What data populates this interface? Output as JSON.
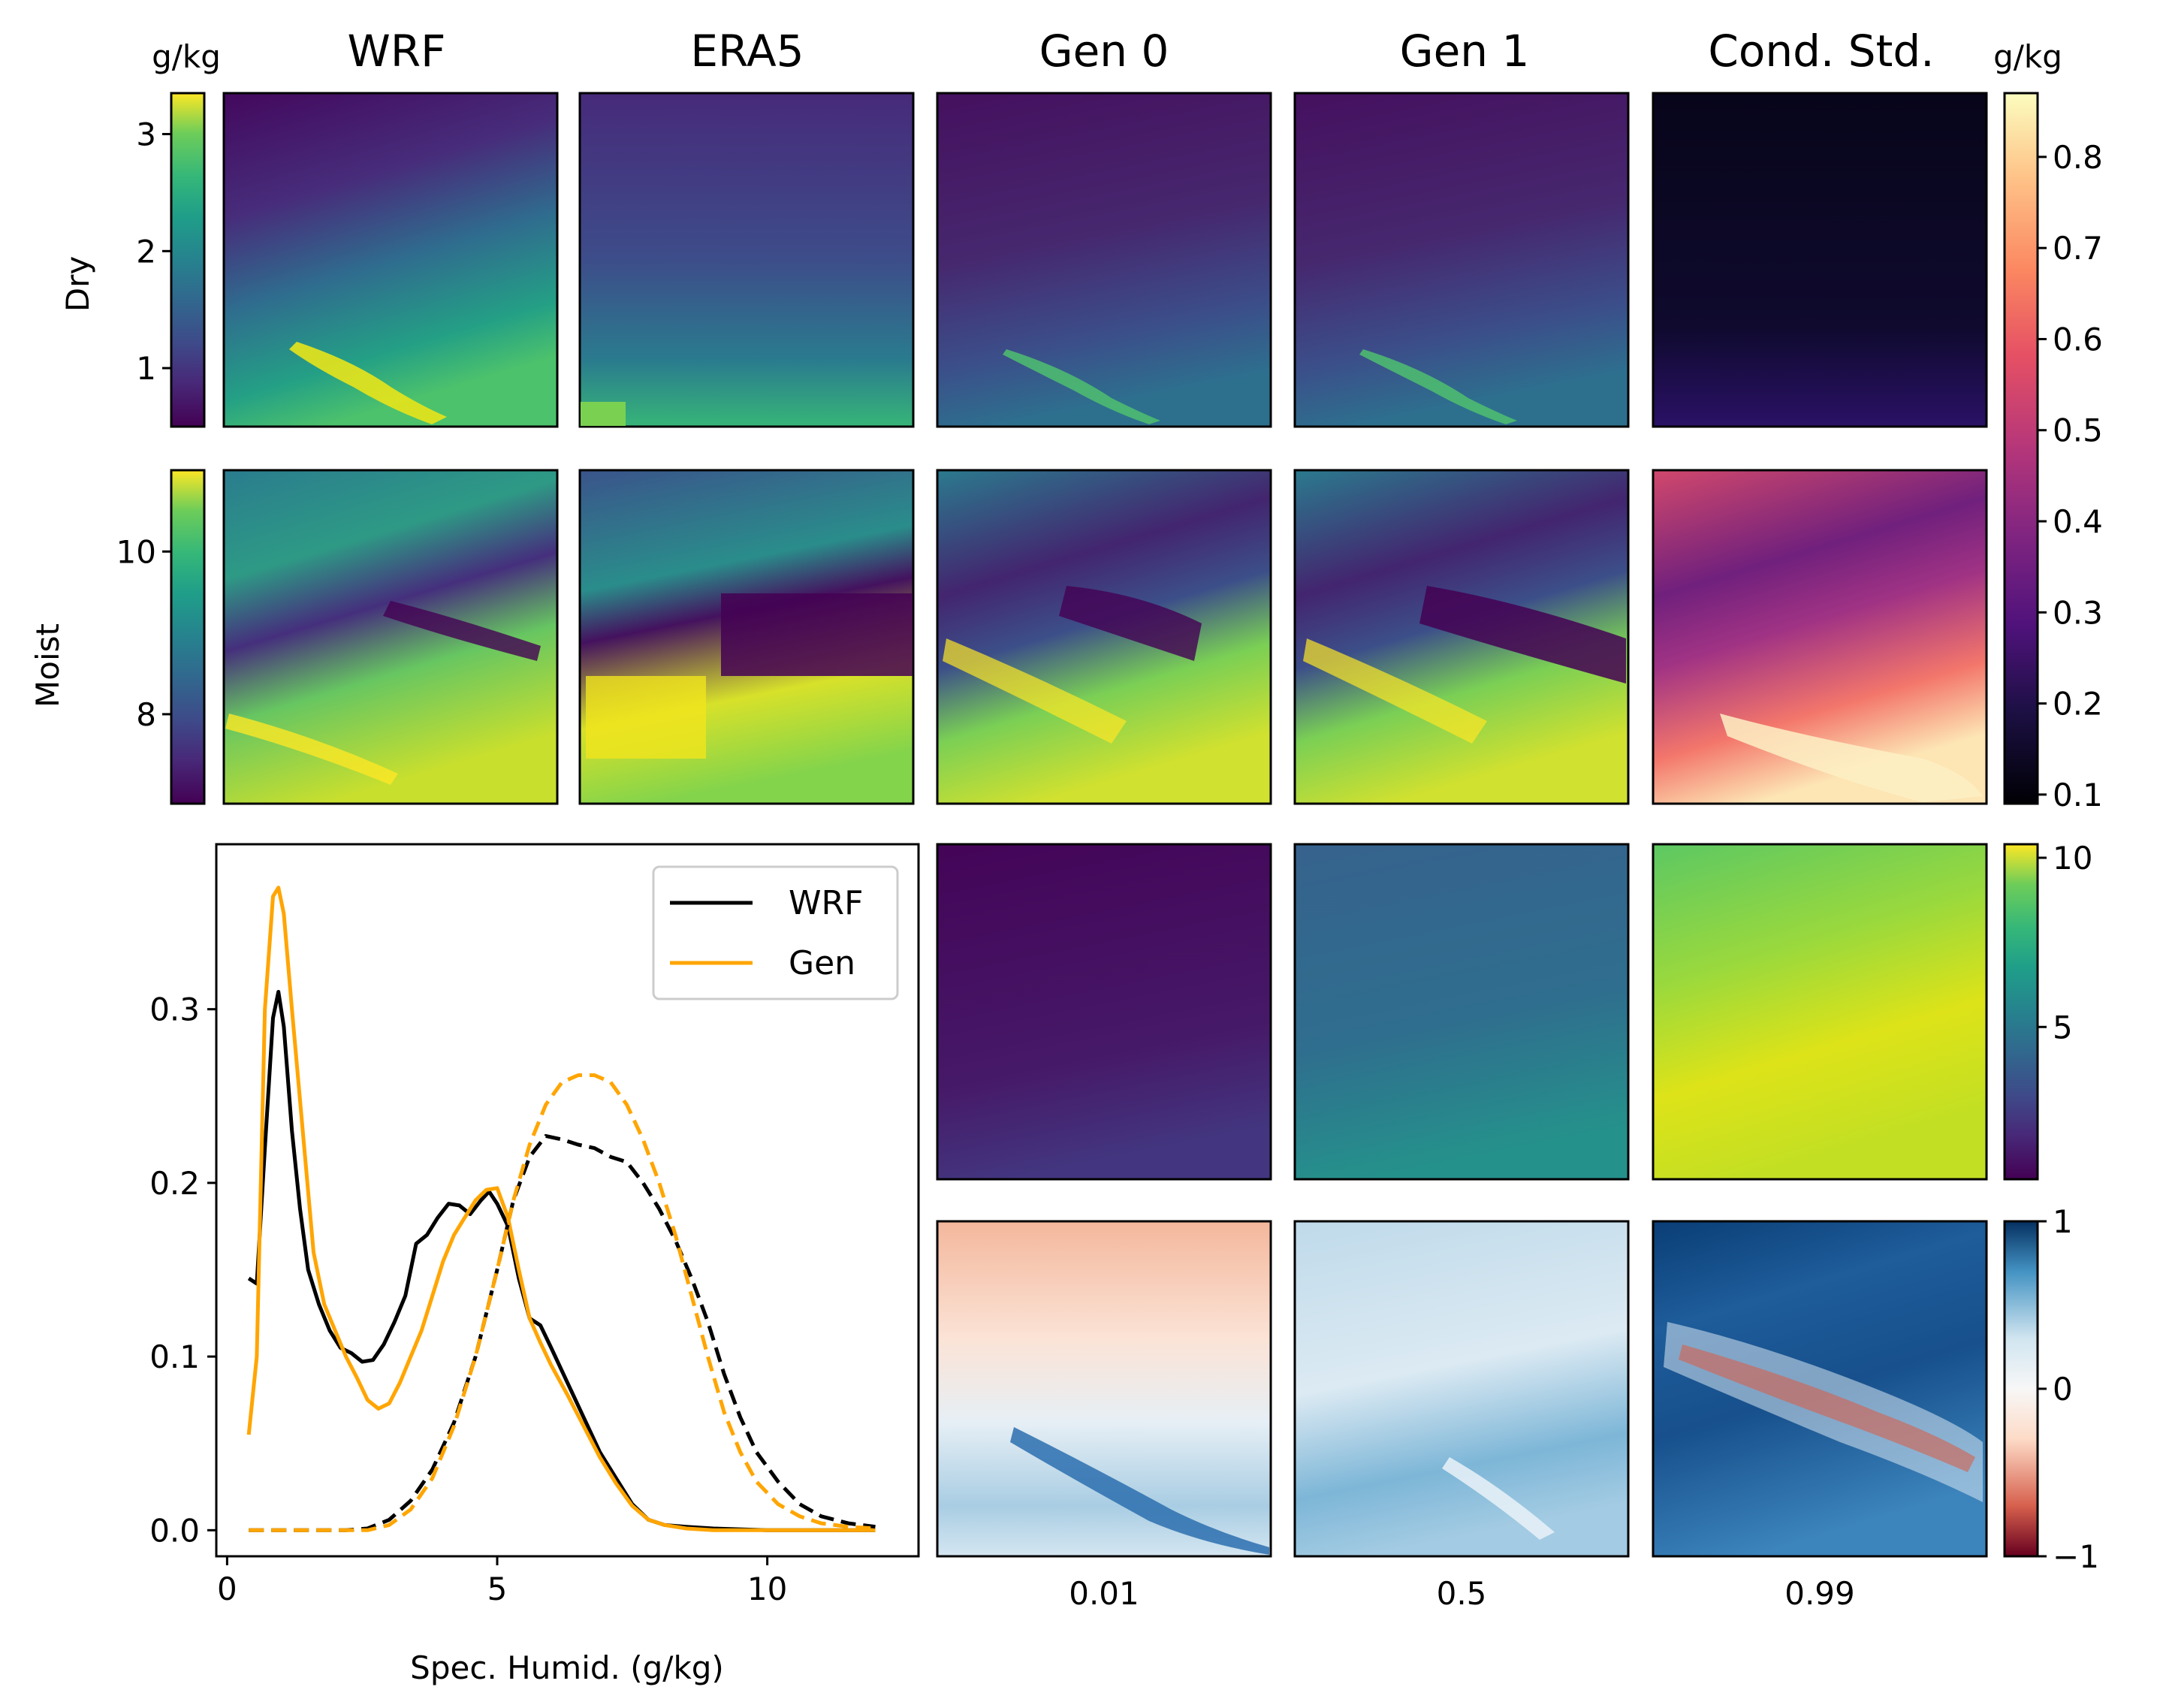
{
  "figure": {
    "column_titles": [
      "WRF",
      "ERA5",
      "Gen 0",
      "Gen 1",
      "Cond. Std."
    ],
    "row_labels": [
      "Dry",
      "Moist"
    ],
    "unit_label_left": "g/kg",
    "unit_label_right": "g/kg",
    "quantile_labels": [
      "0.01",
      "0.5",
      "0.99"
    ],
    "colors": {
      "wrf_line": "#000000",
      "gen_line": "#FFA500",
      "viridis_low": "#440154",
      "viridis_high": "#FDE725",
      "magma_low": "#000004",
      "magma_high": "#FCFDBF",
      "rdbu_low": "#67001F",
      "rdbu_mid": "#F7F7F7",
      "rdbu_high": "#053061"
    }
  },
  "colorbars": {
    "dry": {
      "cmap": "viridis",
      "range": [
        0.5,
        3.35
      ],
      "ticks": [
        "1",
        "2",
        "3"
      ],
      "tick_values": [
        1,
        2,
        3
      ]
    },
    "moist": {
      "cmap": "viridis",
      "range": [
        6.9,
        11.0
      ],
      "ticks": [
        "8",
        "10"
      ],
      "tick_values": [
        8,
        10
      ]
    },
    "std": {
      "cmap": "magma",
      "range": [
        0.09,
        0.87
      ],
      "ticks": [
        "0.1",
        "0.2",
        "0.3",
        "0.4",
        "0.5",
        "0.6",
        "0.7",
        "0.8"
      ],
      "tick_values": [
        0.1,
        0.2,
        0.3,
        0.4,
        0.5,
        0.6,
        0.7,
        0.8
      ]
    },
    "quantile": {
      "cmap": "viridis",
      "range": [
        0.5,
        10.4
      ],
      "ticks": [
        "5",
        "10"
      ],
      "tick_values": [
        5,
        10
      ]
    },
    "corr": {
      "cmap": "RdBu",
      "range": [
        -1,
        1
      ],
      "ticks": [
        "−1",
        "0",
        "1"
      ],
      "tick_values": [
        -1,
        0,
        1
      ]
    }
  },
  "chart_data": {
    "type": "line",
    "xlabel": "Spec. Humid. (g/kg)",
    "ylabel": "",
    "xlim": [
      -0.2,
      12.8
    ],
    "ylim": [
      -0.015,
      0.395
    ],
    "xticks": [
      "0",
      "5",
      "10"
    ],
    "xtick_values": [
      0,
      5,
      10
    ],
    "yticks": [
      "0.0",
      "0.1",
      "0.2",
      "0.3"
    ],
    "ytick_values": [
      0.0,
      0.1,
      0.2,
      0.3
    ],
    "legend": {
      "position": "top-right",
      "entries": [
        "WRF",
        "Gen"
      ]
    },
    "series": [
      {
        "name": "WRF",
        "style": "solid",
        "color": "#000000",
        "x": [
          0.4,
          0.55,
          0.7,
          0.85,
          0.95,
          1.05,
          1.2,
          1.35,
          1.5,
          1.7,
          1.9,
          2.1,
          2.3,
          2.5,
          2.7,
          2.9,
          3.1,
          3.3,
          3.5,
          3.7,
          3.9,
          4.1,
          4.3,
          4.5,
          4.7,
          4.85,
          5.0,
          5.2,
          5.4,
          5.6,
          5.8,
          6.0,
          6.3,
          6.6,
          6.9,
          7.2,
          7.5,
          7.8,
          8.1,
          8.5,
          9.0,
          10.0,
          11.0,
          12.0
        ],
        "y": [
          0.145,
          0.142,
          0.22,
          0.295,
          0.31,
          0.29,
          0.23,
          0.185,
          0.15,
          0.13,
          0.115,
          0.105,
          0.102,
          0.097,
          0.098,
          0.107,
          0.12,
          0.135,
          0.165,
          0.17,
          0.18,
          0.188,
          0.187,
          0.182,
          0.19,
          0.195,
          0.188,
          0.175,
          0.145,
          0.122,
          0.118,
          0.105,
          0.085,
          0.065,
          0.045,
          0.03,
          0.015,
          0.006,
          0.003,
          0.002,
          0.001,
          0.0,
          0.0,
          0.0
        ]
      },
      {
        "name": "Gen",
        "style": "solid",
        "color": "#FFA500",
        "x": [
          0.4,
          0.55,
          0.7,
          0.85,
          0.95,
          1.05,
          1.2,
          1.4,
          1.6,
          1.8,
          2.0,
          2.2,
          2.4,
          2.6,
          2.8,
          3.0,
          3.2,
          3.4,
          3.6,
          3.8,
          4.0,
          4.2,
          4.4,
          4.6,
          4.8,
          5.0,
          5.2,
          5.4,
          5.6,
          5.8,
          6.0,
          6.3,
          6.6,
          6.9,
          7.2,
          7.5,
          7.8,
          8.1,
          8.5,
          9.0,
          10.0,
          11.0,
          12.0
        ],
        "y": [
          0.055,
          0.1,
          0.3,
          0.365,
          0.37,
          0.355,
          0.3,
          0.23,
          0.16,
          0.13,
          0.115,
          0.1,
          0.088,
          0.075,
          0.07,
          0.073,
          0.085,
          0.1,
          0.115,
          0.135,
          0.155,
          0.17,
          0.18,
          0.19,
          0.196,
          0.197,
          0.18,
          0.15,
          0.122,
          0.108,
          0.095,
          0.078,
          0.06,
          0.042,
          0.027,
          0.014,
          0.006,
          0.003,
          0.001,
          0.0,
          0.0,
          0.0,
          0.0
        ]
      },
      {
        "name": "WRF",
        "style": "dashed",
        "color": "#000000",
        "x": [
          0.4,
          1.5,
          2.2,
          2.6,
          3.0,
          3.4,
          3.8,
          4.2,
          4.6,
          5.0,
          5.3,
          5.6,
          5.9,
          6.2,
          6.5,
          6.8,
          7.1,
          7.4,
          7.7,
          8.0,
          8.3,
          8.6,
          8.9,
          9.2,
          9.5,
          9.8,
          10.2,
          10.6,
          11.0,
          11.5,
          12.0
        ],
        "y": [
          0.0,
          0.0,
          0.0,
          0.001,
          0.006,
          0.017,
          0.035,
          0.062,
          0.1,
          0.15,
          0.19,
          0.215,
          0.227,
          0.225,
          0.222,
          0.22,
          0.215,
          0.212,
          0.2,
          0.185,
          0.167,
          0.145,
          0.12,
          0.09,
          0.065,
          0.045,
          0.028,
          0.015,
          0.008,
          0.004,
          0.002
        ]
      },
      {
        "name": "Gen",
        "style": "dashed",
        "color": "#FFA500",
        "x": [
          0.4,
          1.5,
          2.2,
          2.6,
          3.0,
          3.4,
          3.8,
          4.2,
          4.6,
          5.0,
          5.3,
          5.6,
          5.9,
          6.2,
          6.5,
          6.8,
          7.1,
          7.4,
          7.7,
          8.0,
          8.3,
          8.6,
          8.9,
          9.2,
          9.5,
          9.8,
          10.2,
          10.6,
          11.0,
          11.5,
          12.0
        ],
        "y": [
          0.0,
          0.0,
          0.0,
          0.0,
          0.003,
          0.012,
          0.03,
          0.06,
          0.1,
          0.15,
          0.19,
          0.222,
          0.245,
          0.258,
          0.262,
          0.262,
          0.258,
          0.245,
          0.225,
          0.2,
          0.17,
          0.135,
          0.1,
          0.068,
          0.045,
          0.028,
          0.015,
          0.008,
          0.004,
          0.002,
          0.001
        ]
      }
    ]
  }
}
